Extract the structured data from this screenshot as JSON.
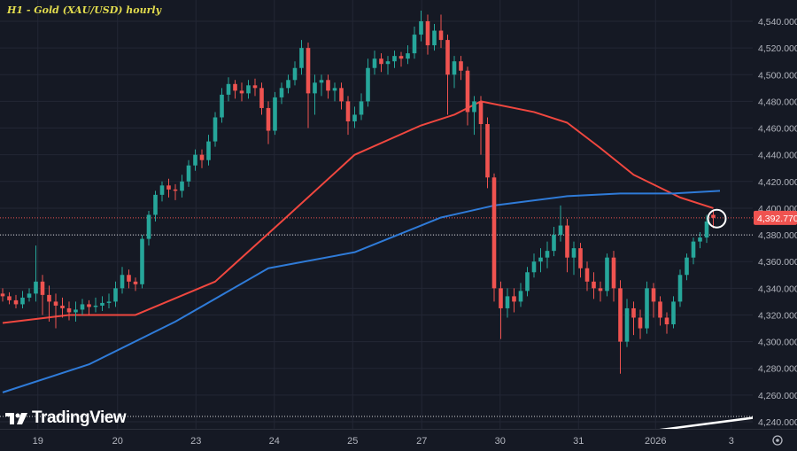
{
  "title": "H1 - Gold (XAU/USD) hourly",
  "brand": "TradingView",
  "chart_data": {
    "type": "candlestick",
    "title": "H1 - Gold (XAU/USD) hourly",
    "ylim": [
      4230,
      4555
    ],
    "grid": true,
    "y_ticks": [
      "4,240.000",
      "4,260.000",
      "4,280.000",
      "4,300.000",
      "4,320.000",
      "4,340.000",
      "4,360.000",
      "4,380.000",
      "4,400.000",
      "4,420.000",
      "4,440.000",
      "4,460.000",
      "4,480.000",
      "4,500.000",
      "4,520.000",
      "4,540.000"
    ],
    "x_ticks": [
      "19",
      "20",
      "23",
      "24",
      "25",
      "27",
      "30",
      "31",
      "2026",
      "3"
    ],
    "last_price": 4392.77,
    "last_price_label": "4,392.770",
    "colors": {
      "up": "#26a69a",
      "down": "#ef5350",
      "ma_red": "#f0473f",
      "ma_blue": "#2f7bd8",
      "background": "#151924",
      "title": "#e2dc4e"
    },
    "candles_ohlc": [
      [
        4336,
        4340,
        4330,
        4334
      ],
      [
        4334,
        4337,
        4328,
        4331
      ],
      [
        4331,
        4335,
        4325,
        4328
      ],
      [
        4328,
        4338,
        4325,
        4333
      ],
      [
        4333,
        4340,
        4330,
        4336
      ],
      [
        4336,
        4372,
        4330,
        4345
      ],
      [
        4345,
        4350,
        4320,
        4335
      ],
      [
        4335,
        4342,
        4315,
        4330
      ],
      [
        4330,
        4336,
        4310,
        4327
      ],
      [
        4327,
        4333,
        4318,
        4325
      ],
      [
        4325,
        4330,
        4316,
        4322
      ],
      [
        4322,
        4330,
        4315,
        4324
      ],
      [
        4324,
        4332,
        4320,
        4328
      ],
      [
        4328,
        4331,
        4320,
        4326
      ],
      [
        4326,
        4333,
        4322,
        4327
      ],
      [
        4327,
        4334,
        4323,
        4329
      ],
      [
        4329,
        4336,
        4325,
        4330
      ],
      [
        4330,
        4345,
        4326,
        4340
      ],
      [
        4340,
        4356,
        4336,
        4350
      ],
      [
        4350,
        4354,
        4340,
        4345
      ],
      [
        4345,
        4348,
        4338,
        4343
      ],
      [
        4343,
        4380,
        4340,
        4377
      ],
      [
        4377,
        4398,
        4372,
        4395
      ],
      [
        4395,
        4413,
        4390,
        4410
      ],
      [
        4410,
        4420,
        4405,
        4417
      ],
      [
        4417,
        4422,
        4408,
        4414
      ],
      [
        4414,
        4418,
        4406,
        4413
      ],
      [
        4413,
        4425,
        4408,
        4420
      ],
      [
        4420,
        4436,
        4416,
        4432
      ],
      [
        4432,
        4444,
        4428,
        4440
      ],
      [
        4440,
        4444,
        4430,
        4436
      ],
      [
        4436,
        4455,
        4432,
        4450
      ],
      [
        4450,
        4472,
        4446,
        4468
      ],
      [
        4468,
        4490,
        4464,
        4485
      ],
      [
        4485,
        4498,
        4480,
        4493
      ],
      [
        4493,
        4496,
        4482,
        4488
      ],
      [
        4488,
        4494,
        4480,
        4486
      ],
      [
        4486,
        4496,
        4482,
        4492
      ],
      [
        4492,
        4497,
        4484,
        4490
      ],
      [
        4490,
        4494,
        4470,
        4475
      ],
      [
        4475,
        4480,
        4448,
        4458
      ],
      [
        4458,
        4487,
        4455,
        4483
      ],
      [
        4483,
        4494,
        4478,
        4490
      ],
      [
        4490,
        4500,
        4486,
        4496
      ],
      [
        4496,
        4510,
        4492,
        4505
      ],
      [
        4505,
        4526,
        4500,
        4520
      ],
      [
        4520,
        4524,
        4460,
        4486
      ],
      [
        4486,
        4500,
        4470,
        4494
      ],
      [
        4494,
        4500,
        4484,
        4496
      ],
      [
        4496,
        4500,
        4482,
        4488
      ],
      [
        4488,
        4494,
        4480,
        4490
      ],
      [
        4490,
        4494,
        4474,
        4480
      ],
      [
        4480,
        4484,
        4455,
        4465
      ],
      [
        4465,
        4476,
        4460,
        4470
      ],
      [
        4470,
        4486,
        4466,
        4480
      ],
      [
        4480,
        4512,
        4476,
        4505
      ],
      [
        4505,
        4518,
        4500,
        4512
      ],
      [
        4512,
        4516,
        4502,
        4508
      ],
      [
        4508,
        4514,
        4500,
        4510
      ],
      [
        4510,
        4518,
        4505,
        4514
      ],
      [
        4514,
        4517,
        4506,
        4512
      ],
      [
        4512,
        4522,
        4508,
        4516
      ],
      [
        4516,
        4536,
        4512,
        4530
      ],
      [
        4530,
        4548,
        4525,
        4540
      ],
      [
        4540,
        4545,
        4515,
        4522
      ],
      [
        4522,
        4538,
        4518,
        4533
      ],
      [
        4533,
        4545,
        4520,
        4526
      ],
      [
        4526,
        4530,
        4470,
        4500
      ],
      [
        4500,
        4514,
        4490,
        4510
      ],
      [
        4510,
        4514,
        4496,
        4503
      ],
      [
        4503,
        4506,
        4462,
        4472
      ],
      [
        4472,
        4484,
        4455,
        4480
      ],
      [
        4480,
        4484,
        4440,
        4463
      ],
      [
        4463,
        4468,
        4415,
        4423
      ],
      [
        4423,
        4426,
        4330,
        4340
      ],
      [
        4340,
        4345,
        4302,
        4325
      ],
      [
        4325,
        4340,
        4318,
        4334
      ],
      [
        4334,
        4340,
        4322,
        4330
      ],
      [
        4330,
        4344,
        4326,
        4338
      ],
      [
        4338,
        4356,
        4334,
        4352
      ],
      [
        4352,
        4366,
        4348,
        4360
      ],
      [
        4360,
        4370,
        4352,
        4363
      ],
      [
        4363,
        4375,
        4355,
        4368
      ],
      [
        4368,
        4386,
        4364,
        4380
      ],
      [
        4380,
        4402,
        4375,
        4387
      ],
      [
        4387,
        4392,
        4352,
        4363
      ],
      [
        4363,
        4375,
        4350,
        4370
      ],
      [
        4370,
        4374,
        4348,
        4355
      ],
      [
        4355,
        4360,
        4338,
        4345
      ],
      [
        4345,
        4352,
        4332,
        4340
      ],
      [
        4340,
        4345,
        4330,
        4338
      ],
      [
        4338,
        4366,
        4334,
        4363
      ],
      [
        4363,
        4368,
        4330,
        4340
      ],
      [
        4340,
        4346,
        4276,
        4300
      ],
      [
        4300,
        4332,
        4296,
        4325
      ],
      [
        4325,
        4330,
        4305,
        4318
      ],
      [
        4318,
        4324,
        4302,
        4310
      ],
      [
        4310,
        4345,
        4306,
        4340
      ],
      [
        4340,
        4344,
        4318,
        4330
      ],
      [
        4330,
        4334,
        4312,
        4318
      ],
      [
        4318,
        4322,
        4306,
        4313
      ],
      [
        4313,
        4334,
        4310,
        4330
      ],
      [
        4330,
        4354,
        4326,
        4350
      ],
      [
        4350,
        4366,
        4346,
        4363
      ],
      [
        4363,
        4378,
        4358,
        4375
      ],
      [
        4375,
        4382,
        4370,
        4378
      ],
      [
        4378,
        4395,
        4374,
        4390
      ],
      [
        4395,
        4398,
        4385,
        4392.77
      ]
    ],
    "ma_red": [
      [
        0,
        4314
      ],
      [
        10,
        4320
      ],
      [
        20,
        4320
      ],
      [
        32,
        4345
      ],
      [
        42,
        4390
      ],
      [
        53,
        4440
      ],
      [
        63,
        4462
      ],
      [
        68,
        4470
      ],
      [
        72,
        4480
      ],
      [
        80,
        4472
      ],
      [
        85,
        4464
      ],
      [
        90,
        4445
      ],
      [
        95,
        4425
      ],
      [
        102,
        4408
      ],
      [
        107,
        4400
      ]
    ],
    "ma_blue": [
      [
        0,
        4262
      ],
      [
        13,
        4283
      ],
      [
        26,
        4315
      ],
      [
        40,
        4355
      ],
      [
        53,
        4367
      ],
      [
        66,
        4393
      ],
      [
        74,
        4402
      ],
      [
        85,
        4409
      ],
      [
        93,
        4411
      ],
      [
        101,
        4411
      ],
      [
        108,
        4413
      ]
    ],
    "horizontal_levels": [
      4392.77,
      4380,
      4244
    ],
    "trendline": [
      [
        96,
        4232
      ],
      [
        113,
        4243
      ]
    ],
    "highlight_candle_index": 107
  }
}
